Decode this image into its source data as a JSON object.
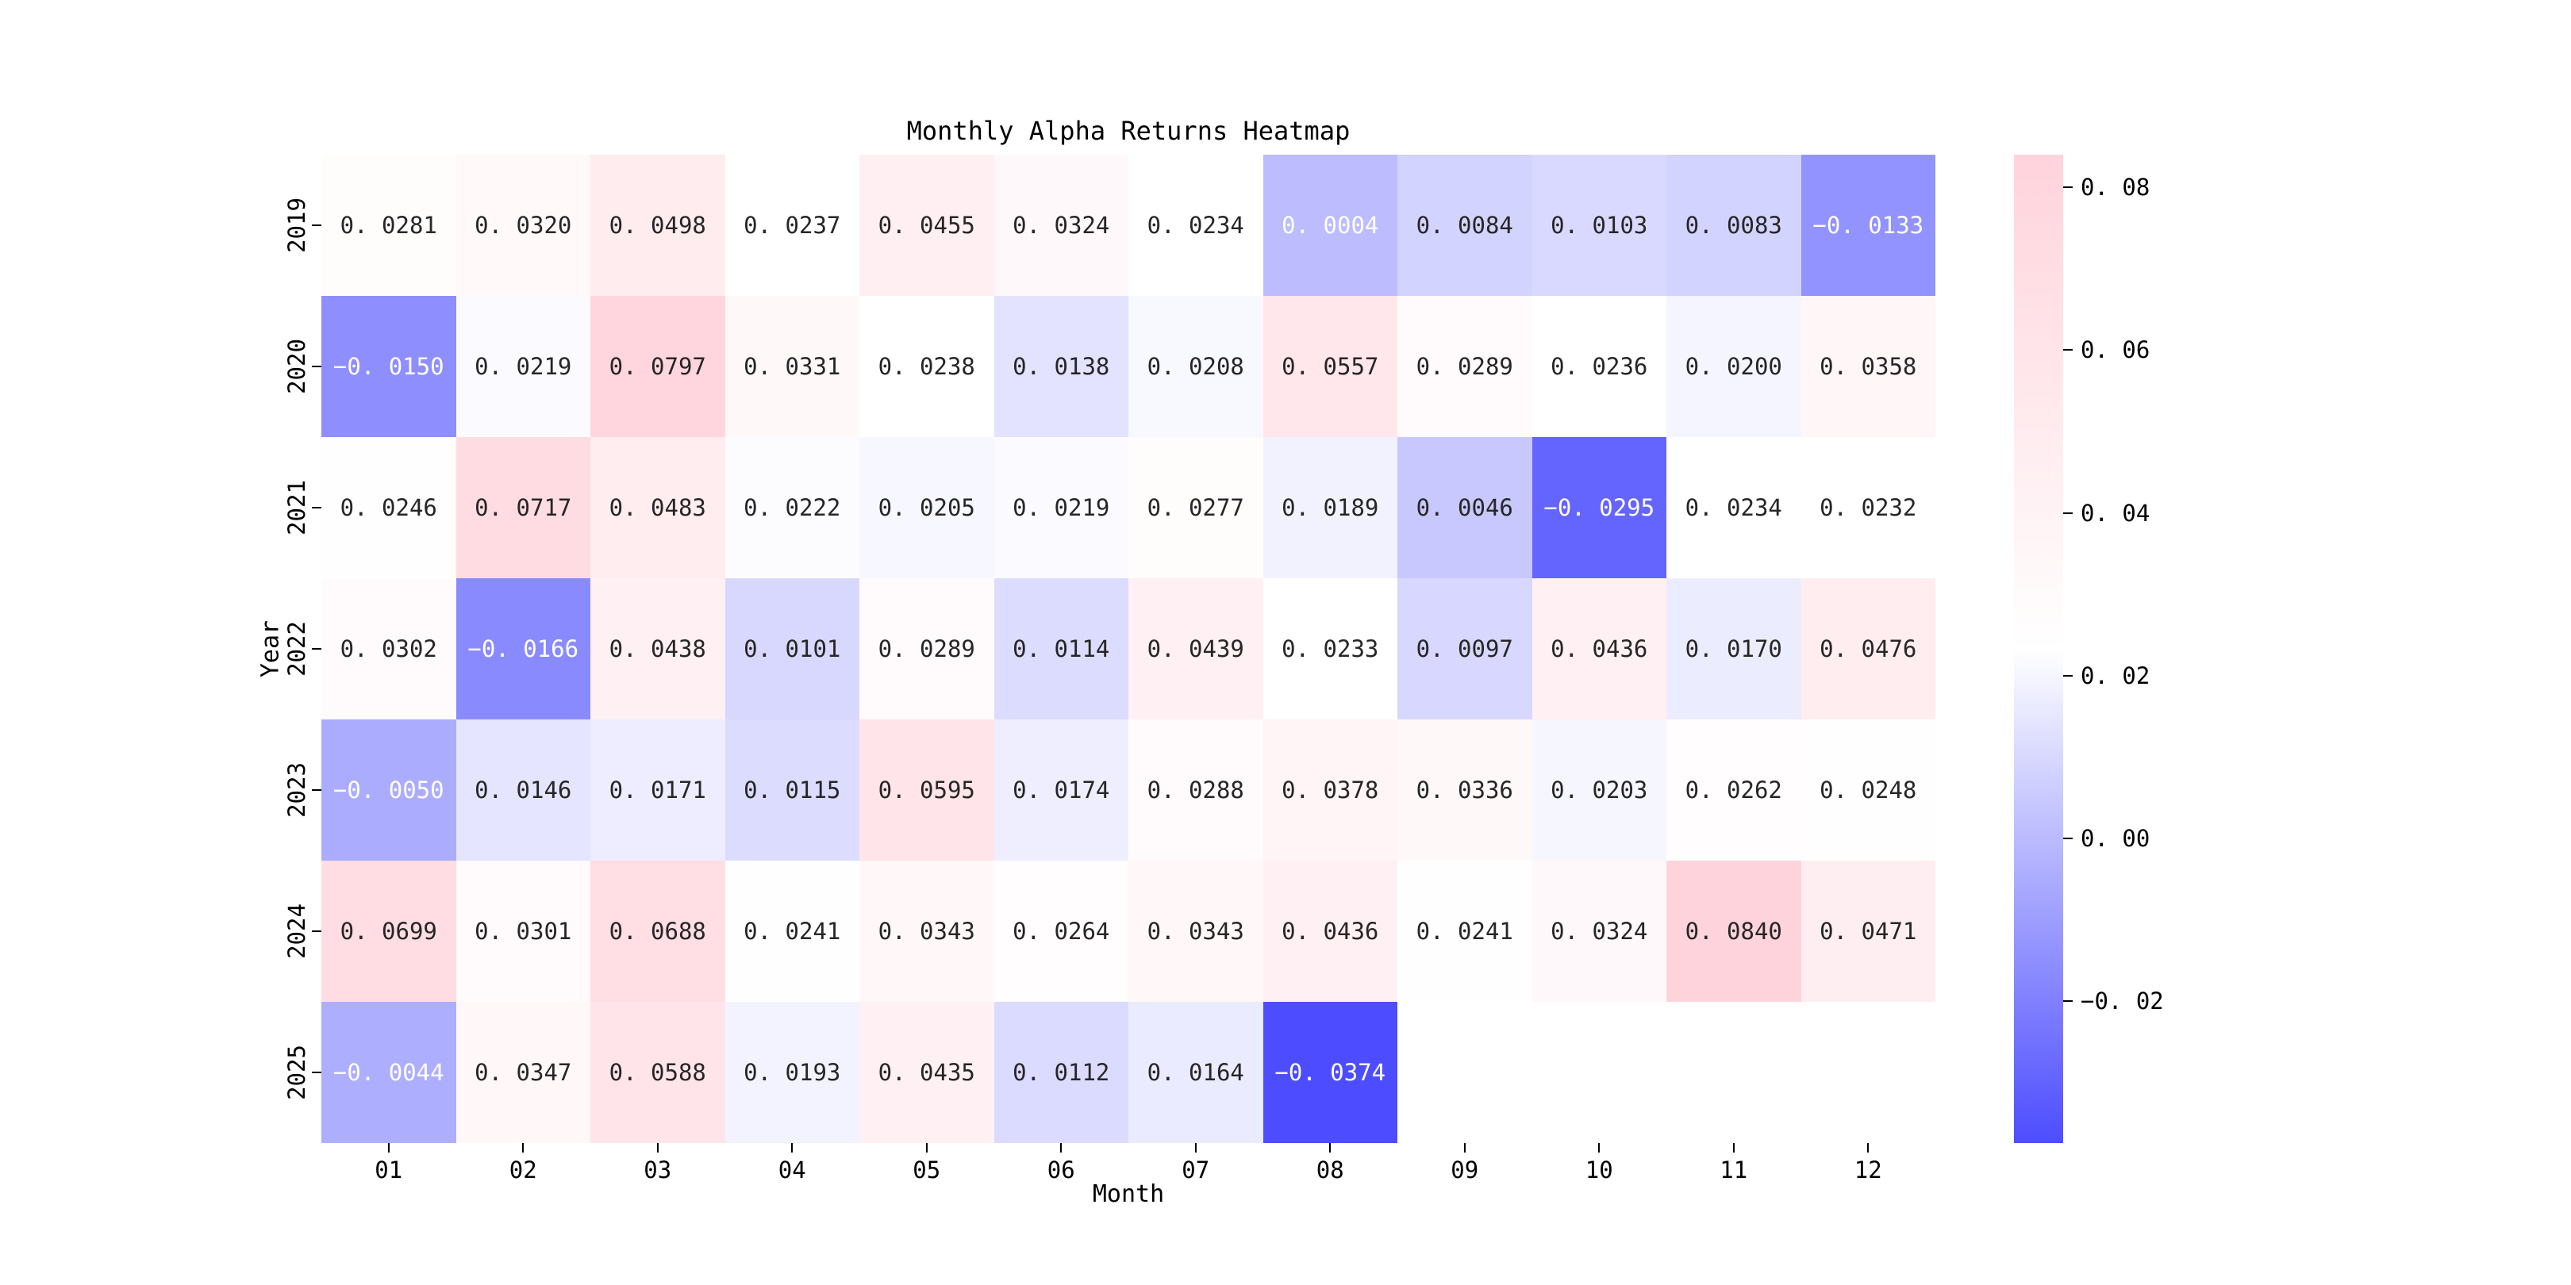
{
  "page": {
    "background": "#ffffff"
  },
  "chart_data": {
    "type": "heatmap",
    "title": "Monthly Alpha Returns Heatmap",
    "xlabel": "Month",
    "ylabel": "Year",
    "x_tick_labels": [
      "01",
      "02",
      "03",
      "04",
      "05",
      "06",
      "07",
      "08",
      "09",
      "10",
      "11",
      "12"
    ],
    "y_tick_labels": [
      "2019",
      "2020",
      "2021",
      "2022",
      "2023",
      "2024",
      "2025"
    ],
    "values": [
      [
        0.0281,
        0.032,
        0.0498,
        0.0237,
        0.0455,
        0.0324,
        0.0234,
        0.0004,
        0.0084,
        0.0103,
        0.0083,
        -0.0133
      ],
      [
        -0.015,
        0.0219,
        0.0797,
        0.0331,
        0.0238,
        0.0138,
        0.0208,
        0.0557,
        0.0289,
        0.0236,
        0.02,
        0.0358
      ],
      [
        0.0246,
        0.0717,
        0.0483,
        0.0222,
        0.0205,
        0.0219,
        0.0277,
        0.0189,
        0.0046,
        -0.0295,
        0.0234,
        0.0232
      ],
      [
        0.0302,
        -0.0166,
        0.0438,
        0.0101,
        0.0289,
        0.0114,
        0.0439,
        0.0233,
        0.0097,
        0.0436,
        0.017,
        0.0476
      ],
      [
        -0.005,
        0.0146,
        0.0171,
        0.0115,
        0.0595,
        0.0174,
        0.0288,
        0.0378,
        0.0336,
        0.0203,
        0.0262,
        0.0248
      ],
      [
        0.0699,
        0.0301,
        0.0688,
        0.0241,
        0.0343,
        0.0264,
        0.0343,
        0.0436,
        0.0241,
        0.0324,
        0.084,
        0.0471
      ],
      [
        -0.0044,
        0.0347,
        0.0588,
        0.0193,
        0.0435,
        0.0112,
        0.0164,
        -0.0374,
        null,
        null,
        null,
        null
      ]
    ],
    "value_format_decimals": 4,
    "vmin": -0.0374,
    "vmax": 0.084,
    "grid": false,
    "colorbar": {
      "position": "right",
      "tick_values": [
        0.08,
        0.06,
        0.04,
        0.02,
        0.0,
        -0.02
      ],
      "tick_format_decimals": 2
    },
    "colormap": {
      "low_color": "#0000ff",
      "mid_color": "#ffffff",
      "high_color": "#ffc0cb",
      "blend_alpha": 0.7,
      "white_text_luminance_threshold": 0.55,
      "dark_text_color": "#262626",
      "light_text_color": "#ffffff"
    }
  }
}
